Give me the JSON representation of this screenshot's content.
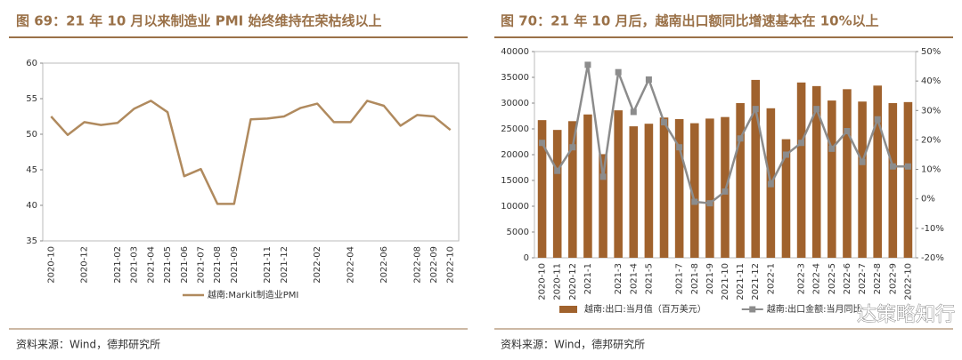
{
  "chart_data": [
    {
      "type": "line",
      "title": "图 69：21 年 10 月以来制造业 PMI 始终维持在荣枯线以上",
      "source": "资料来源：Wind，德邦研究所",
      "categories": [
        "2020-10",
        null,
        "2020-12",
        null,
        "2021-02",
        "2021-03",
        "2021-04",
        "2021-05",
        "2021-06",
        "2021-07",
        "2021-08",
        "2021-09",
        null,
        "2021-11",
        "2021-12",
        null,
        "2022-02",
        null,
        "2022-04",
        null,
        "2022-06",
        null,
        "2022-08",
        "2022-09",
        "2022-10"
      ],
      "series": [
        {
          "name": "越南:Markit制造业PMI",
          "color": "#b08a5e",
          "values": [
            52.5,
            49.9,
            51.7,
            51.3,
            51.6,
            53.6,
            54.7,
            53.1,
            44.1,
            45.1,
            40.2,
            40.2,
            52.1,
            52.2,
            52.5,
            53.7,
            54.3,
            51.7,
            51.7,
            54.7,
            54.0,
            51.2,
            52.7,
            52.5,
            50.6
          ]
        }
      ],
      "ylim": [
        35,
        60
      ],
      "yticks": [
        35,
        40,
        45,
        50,
        55,
        60
      ],
      "grid": false
    },
    {
      "type": "bar",
      "title": "图 70：21 年 10 月后，越南出口额同比增速基本在 10%以上",
      "source": "资料来源：Wind，德邦研究所",
      "watermark": "达策略知行",
      "categories": [
        "2020-10",
        "2020-11",
        "2020-12",
        "2021-1",
        null,
        "2021-3",
        "2021-4",
        "2021-5",
        null,
        "2021-7",
        "2021-8",
        "2021-9",
        "2021-10",
        "2021-11",
        "2021-12",
        "2022-1",
        null,
        "2022-3",
        "2022-4",
        "2022-5",
        "2022-6",
        "2022-7",
        "2022-8",
        "2022-9",
        "2022-10"
      ],
      "series": [
        {
          "name": "越南:出口:当月值（百万美元）",
          "color": "#a0622d",
          "values": [
            26700,
            24800,
            26500,
            27800,
            20100,
            28600,
            25500,
            26000,
            27200,
            26900,
            26100,
            27000,
            27300,
            30000,
            34500,
            29000,
            23000,
            34000,
            33300,
            30500,
            32700,
            30300,
            33400,
            30000,
            30200
          ]
        },
        {
          "name": "越南:出口金额:当月同比",
          "color": "#8c8c8c",
          "axis": "y2",
          "values": [
            19,
            9.5,
            17.5,
            45.5,
            7.5,
            43,
            29.5,
            40.5,
            26,
            17.5,
            -1,
            -1.5,
            2.5,
            20.5,
            30.5,
            5,
            15,
            19,
            30.5,
            17,
            23,
            12.5,
            27,
            11,
            11
          ]
        }
      ],
      "ylim": [
        0,
        40000
      ],
      "yticks": [
        0,
        5000,
        10000,
        15000,
        20000,
        25000,
        30000,
        35000,
        40000
      ],
      "y2lim": [
        -20,
        50
      ],
      "y2ticks": [
        {
          "value": -20,
          "label": "-20%"
        },
        {
          "value": -10,
          "label": "-10%"
        },
        {
          "value": 0,
          "label": "0%"
        },
        {
          "value": 10,
          "label": "10%"
        },
        {
          "value": 20,
          "label": "20%"
        },
        {
          "value": 30,
          "label": "30%"
        },
        {
          "value": 40,
          "label": "40%"
        },
        {
          "value": 50,
          "label": "50%"
        }
      ],
      "grid": false
    }
  ]
}
